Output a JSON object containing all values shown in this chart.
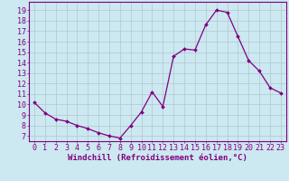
{
  "x": [
    0,
    1,
    2,
    3,
    4,
    5,
    6,
    7,
    8,
    9,
    10,
    11,
    12,
    13,
    14,
    15,
    16,
    17,
    18,
    19,
    20,
    21,
    22,
    23
  ],
  "y": [
    10.2,
    9.2,
    8.6,
    8.4,
    8.0,
    7.7,
    7.3,
    7.0,
    6.8,
    8.0,
    9.3,
    11.2,
    9.8,
    14.6,
    15.3,
    15.2,
    17.6,
    19.0,
    18.8,
    16.5,
    14.2,
    13.2,
    11.6,
    11.1
  ],
  "xlabel": "Windchill (Refroidissement éolien,°C)",
  "ylabel_ticks": [
    7,
    8,
    9,
    10,
    11,
    12,
    13,
    14,
    15,
    16,
    17,
    18,
    19
  ],
  "ylim": [
    6.5,
    19.8
  ],
  "xlim": [
    -0.5,
    23.5
  ],
  "line_color": "#800080",
  "marker_color": "#800080",
  "bg_color": "#cce8f0",
  "grid_color": "#b0c8d0",
  "font_color": "#800080",
  "tick_fontsize": 6.0,
  "xlabel_fontsize": 6.5,
  "marker_size": 2.0,
  "linewidth": 0.9
}
